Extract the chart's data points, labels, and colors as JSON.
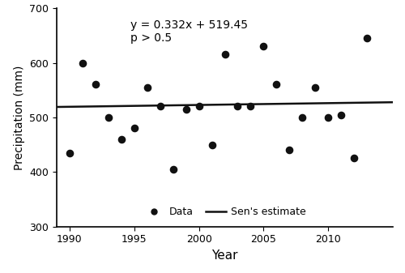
{
  "years": [
    1990,
    1991,
    1992,
    1993,
    1994,
    1995,
    1996,
    1997,
    1998,
    1999,
    2000,
    2001,
    2002,
    2003,
    2004,
    2005,
    2006,
    2007,
    2008,
    2009,
    2010,
    2011,
    2012,
    2013
  ],
  "precipitation": [
    435,
    600,
    560,
    500,
    460,
    480,
    555,
    520,
    405,
    515,
    520,
    450,
    615,
    520,
    520,
    630,
    560,
    440,
    500,
    555,
    500,
    505,
    425,
    645
  ],
  "trend_slope": 0.332,
  "trend_intercept": 519.45,
  "trend_x_offset": 1990,
  "equation_text": "y = 0.332x + 519.45",
  "pvalue_text": "p > 0.5",
  "xlabel": "Year",
  "ylabel": "Precipitation (mm)",
  "xlim": [
    1989,
    2015
  ],
  "ylim": [
    300,
    700
  ],
  "yticks": [
    300,
    400,
    500,
    600,
    700
  ],
  "xticks": [
    1990,
    1995,
    2000,
    2005,
    2010
  ],
  "dot_color": "#111111",
  "line_color": "#111111",
  "dot_size": 35,
  "legend_dot_label": "Data",
  "legend_line_label": "Sen's estimate",
  "background_color": "#ffffff"
}
